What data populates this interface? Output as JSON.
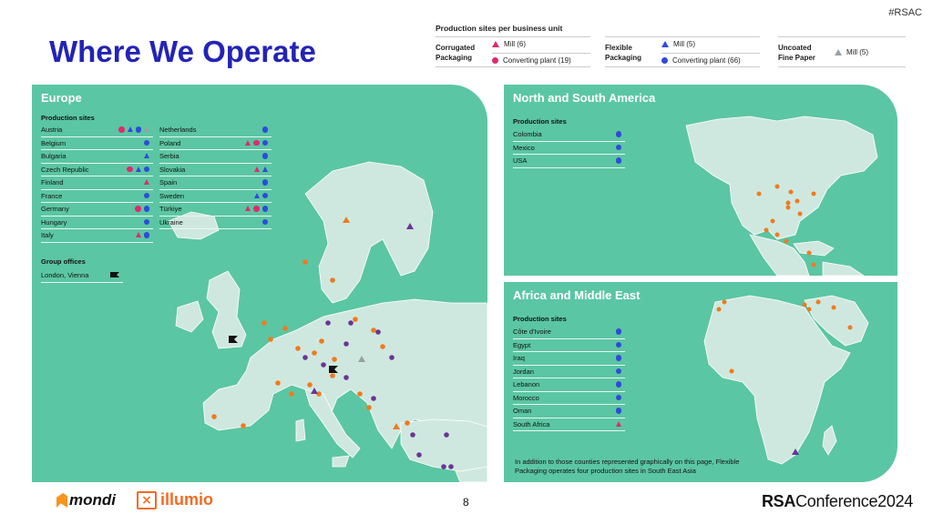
{
  "hashtag": "#RSAC",
  "title": "Where We Operate",
  "colors": {
    "accent": "#2323b8",
    "panel": "#5bc6a3",
    "land": "#cfe8df",
    "mill_corrugated": "#e0296e",
    "converting_corrugated": "#e0296e",
    "mill_flexible": "#2f4bd8",
    "converting_flexible": "#2f4bd8",
    "mill_uncoated": "#9aa0a6",
    "map_orange": "#f07a1e",
    "map_purple": "#6a3595"
  },
  "legend": {
    "title": "Production sites per business unit",
    "groups": [
      {
        "name_line1": "Corrugated",
        "name_line2": "Packaging",
        "entries": [
          {
            "symbol": "triangle",
            "color": "#e0296e",
            "label": "Mill (6)"
          },
          {
            "symbol": "dot",
            "color": "#e0296e",
            "label": "Converting plant (19)"
          }
        ]
      },
      {
        "name_line1": "Flexible",
        "name_line2": "Packaging",
        "entries": [
          {
            "symbol": "triangle",
            "color": "#2f4bd8",
            "label": "Mill (5)"
          },
          {
            "symbol": "dot",
            "color": "#2f4bd8",
            "label": "Converting plant (66)"
          }
        ]
      },
      {
        "name_line1": "Uncoated",
        "name_line2": "Fine Paper",
        "entries": [
          {
            "symbol": "triangle",
            "color": "#9aa0a6",
            "label": "Mill (5)"
          }
        ]
      }
    ]
  },
  "europe": {
    "title": "Europe",
    "production_sites_label": "Production sites",
    "col1": [
      {
        "name": "Austria",
        "symbols": [
          "dot:#e0296e",
          "tri:#2f4bd8",
          "dot:#2f4bd8",
          "tri:#9aa0a6"
        ]
      },
      {
        "name": "Belgium",
        "symbols": [
          "dot:#2f4bd8"
        ]
      },
      {
        "name": "Bulgaria",
        "symbols": [
          "tri:#2f4bd8"
        ]
      },
      {
        "name": "Czech Republic",
        "symbols": [
          "dot:#e0296e",
          "tri:#2f4bd8",
          "dot:#2f4bd8"
        ]
      },
      {
        "name": "Finland",
        "symbols": [
          "tri:#e0296e"
        ]
      },
      {
        "name": "France",
        "symbols": [
          "dot:#2f4bd8"
        ]
      },
      {
        "name": "Germany",
        "symbols": [
          "dot:#e0296e",
          "dot:#2f4bd8"
        ]
      },
      {
        "name": "Hungary",
        "symbols": [
          "dot:#2f4bd8"
        ]
      },
      {
        "name": "Italy",
        "symbols": [
          "tri:#e0296e",
          "dot:#2f4bd8"
        ]
      }
    ],
    "col2": [
      {
        "name": "Netherlands",
        "symbols": [
          "dot:#2f4bd8"
        ]
      },
      {
        "name": "Poland",
        "symbols": [
          "tri:#e0296e",
          "dot:#e0296e",
          "dot:#2f4bd8"
        ]
      },
      {
        "name": "Serbia",
        "symbols": [
          "dot:#2f4bd8"
        ]
      },
      {
        "name": "Slovakia",
        "symbols": [
          "tri:#e0296e",
          "tri:#2f4bd8"
        ]
      },
      {
        "name": "Spain",
        "symbols": [
          "dot:#2f4bd8"
        ]
      },
      {
        "name": "Sweden",
        "symbols": [
          "tri:#2f4bd8",
          "dot:#2f4bd8"
        ]
      },
      {
        "name": "Türkiye",
        "symbols": [
          "tri:#e0296e",
          "dot:#e0296e",
          "dot:#2f4bd8"
        ]
      },
      {
        "name": "Ukraine",
        "symbols": [
          "dot:#2f4bd8"
        ]
      }
    ],
    "group_offices_label": "Group offices",
    "group_offices": [
      {
        "name": "London, Vienna",
        "symbols": [
          "flag:#111111"
        ]
      }
    ]
  },
  "america": {
    "title": "North and South America",
    "production_sites_label": "Production sites",
    "sites": [
      {
        "name": "Colombia",
        "symbols": [
          "dot:#2f4bd8"
        ]
      },
      {
        "name": "Mexico",
        "symbols": [
          "dot:#2f4bd8"
        ]
      },
      {
        "name": "USA",
        "symbols": [
          "dot:#2f4bd8"
        ]
      }
    ]
  },
  "africa": {
    "title": "Africa and Middle East",
    "production_sites_label": "Production sites",
    "sites": [
      {
        "name": "Côte d'Ivoire",
        "symbols": [
          "dot:#2f4bd8"
        ]
      },
      {
        "name": "Egypt",
        "symbols": [
          "dot:#2f4bd8"
        ]
      },
      {
        "name": "Iraq",
        "symbols": [
          "dot:#2f4bd8"
        ]
      },
      {
        "name": "Jordan",
        "symbols": [
          "dot:#2f4bd8"
        ]
      },
      {
        "name": "Lebanon",
        "symbols": [
          "dot:#2f4bd8"
        ]
      },
      {
        "name": "Morocco",
        "symbols": [
          "dot:#2f4bd8"
        ]
      },
      {
        "name": "Oman",
        "symbols": [
          "dot:#2f4bd8"
        ]
      },
      {
        "name": "South Africa",
        "symbols": [
          "tri:#e0296e"
        ]
      }
    ],
    "note": "In addition to those counties represented graphically on this page, Flexible Packaging operates four production sites in South East Asia"
  },
  "footer": {
    "mondi": "mondi",
    "illumio": "illumio",
    "page_number": "8",
    "rsa_bold": "RSA",
    "rsa_rest": "Conference2024"
  }
}
